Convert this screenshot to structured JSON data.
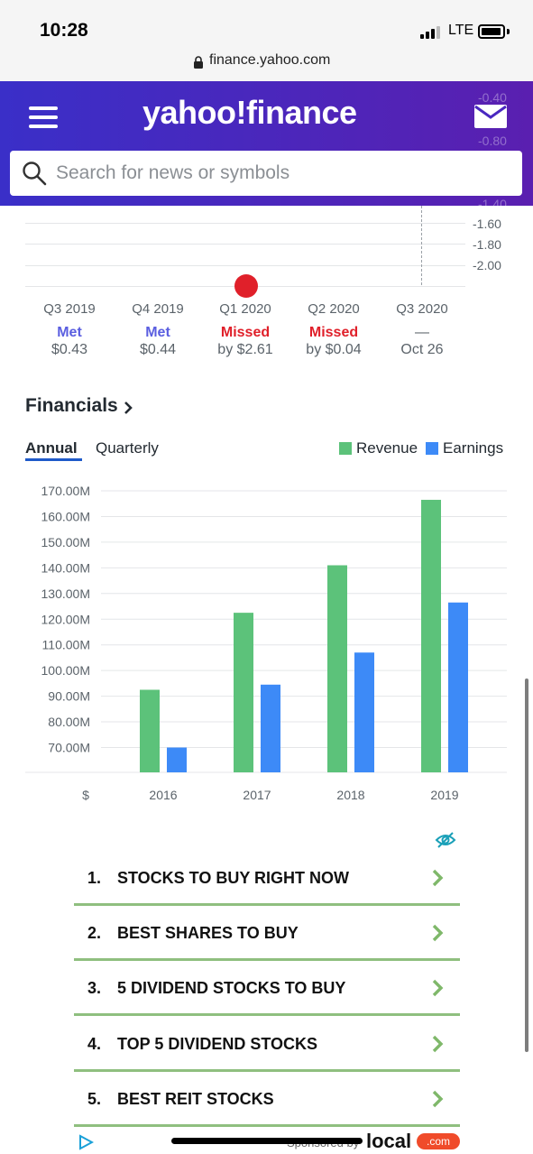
{
  "status": {
    "time": "10:28",
    "network": "LTE"
  },
  "browser": {
    "url": "finance.yahoo.com"
  },
  "header": {
    "logo": "yahoo!finance",
    "search_placeholder": "Search for news or symbols",
    "ghost_labels": [
      "-0.40",
      "-0.80",
      "-1.40"
    ]
  },
  "eps": {
    "y_labels": [
      "-1.60",
      "-1.80",
      "-2.00"
    ],
    "quarters": [
      {
        "label": "Q3 2019",
        "result": "Met",
        "value": "$0.43",
        "color": "#5a5ee0"
      },
      {
        "label": "Q4 2019",
        "result": "Met",
        "value": "$0.44",
        "color": "#5a5ee0"
      },
      {
        "label": "Q1 2020",
        "result": "Missed",
        "value": "by $2.61",
        "color": "#e0202a"
      },
      {
        "label": "Q2 2020",
        "result": "Missed",
        "value": "by $0.04",
        "color": "#e0202a"
      },
      {
        "label": "Q3 2020",
        "result": "—",
        "value": "Oct 26",
        "color": "#5b636a"
      }
    ],
    "dot_color": "#e0202a"
  },
  "financials": {
    "title": "Financials",
    "tabs": {
      "annual": "Annual",
      "quarterly": "Quarterly"
    },
    "legend": {
      "revenue": "Revenue",
      "earnings": "Earnings"
    }
  },
  "chart_data": {
    "type": "bar",
    "categories": [
      "2016",
      "2017",
      "2018",
      "2019"
    ],
    "series": [
      {
        "name": "Revenue",
        "color": "#5cc27a",
        "values": [
          92.5,
          122.5,
          141.0,
          166.5
        ]
      },
      {
        "name": "Earnings",
        "color": "#3d8af7",
        "values": [
          70.0,
          94.5,
          107.0,
          126.5
        ]
      }
    ],
    "y_ticks": [
      "170.00M",
      "160.00M",
      "150.00M",
      "140.00M",
      "130.00M",
      "120.00M",
      "110.00M",
      "100.00M",
      "90.00M",
      "80.00M",
      "70.00M"
    ],
    "y_tick_values": [
      170,
      160,
      150,
      140,
      130,
      120,
      110,
      100,
      90,
      80,
      70
    ],
    "x_axis_unit": "$",
    "ylim": [
      60,
      170
    ],
    "grid": true,
    "legend_position": "top-right"
  },
  "ads": {
    "items": [
      {
        "num": "1.",
        "label": "STOCKS TO BUY RIGHT NOW"
      },
      {
        "num": "2.",
        "label": "BEST SHARES TO BUY"
      },
      {
        "num": "3.",
        "label": "5 DIVIDEND STOCKS TO BUY"
      },
      {
        "num": "4.",
        "label": "TOP 5 DIVIDEND STOCKS"
      },
      {
        "num": "5.",
        "label": "BEST REIT STOCKS"
      }
    ],
    "sponsored_text": "Sponsored by",
    "brand": "local",
    "brand_suffix": ".com",
    "accent_color": "#8fbf7f"
  }
}
